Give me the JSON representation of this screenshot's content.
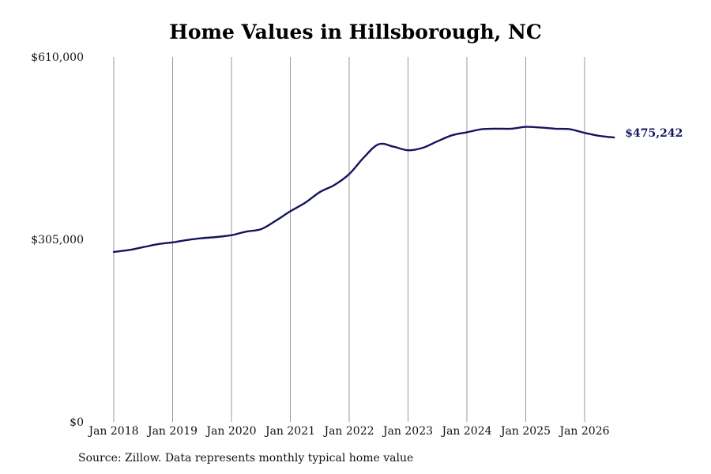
{
  "chart_data": {
    "type": "line",
    "title": "Home Values in Hillsborough, NC",
    "xlabel": "",
    "ylabel": "",
    "ylim": [
      0,
      610000
    ],
    "yticks": [
      0,
      305000,
      610000
    ],
    "ytick_labels": [
      "$0",
      "$305,000",
      "$610,000"
    ],
    "xlim": [
      "2018-01",
      "2026-08"
    ],
    "xtick_labels": [
      "Jan 2018",
      "Jan 2019",
      "Jan 2020",
      "Jan 2021",
      "Jan 2022",
      "Jan 2023",
      "Jan 2024",
      "Jan 2025",
      "Jan 2026"
    ],
    "grid": "vertical",
    "line_color": "#14145e",
    "series": [
      {
        "x": [
          "2018-01",
          "2018-04",
          "2018-07",
          "2018-10",
          "2019-01",
          "2019-04",
          "2019-07",
          "2019-10",
          "2020-01",
          "2020-04",
          "2020-07",
          "2020-10",
          "2021-01",
          "2021-04",
          "2021-07",
          "2021-10",
          "2022-01",
          "2022-04",
          "2022-07",
          "2022-10",
          "2023-01",
          "2023-04",
          "2023-07",
          "2023-10",
          "2024-01",
          "2024-04",
          "2024-07",
          "2024-10",
          "2025-01",
          "2025-04",
          "2025-07",
          "2025-10",
          "2026-01",
          "2026-04",
          "2026-07"
        ],
        "values": [
          284000,
          287000,
          292000,
          297000,
          300000,
          304000,
          307000,
          309000,
          312000,
          318000,
          322000,
          336000,
          352000,
          366000,
          384000,
          396000,
          414000,
          442000,
          464000,
          460000,
          454000,
          458000,
          469000,
          479000,
          484000,
          489000,
          490000,
          490000,
          493000,
          492000,
          490000,
          489000,
          483000,
          478000,
          475242
        ]
      }
    ],
    "end_label": "$475,242",
    "source": "Source: Zillow. Data represents monthly typical home value"
  }
}
